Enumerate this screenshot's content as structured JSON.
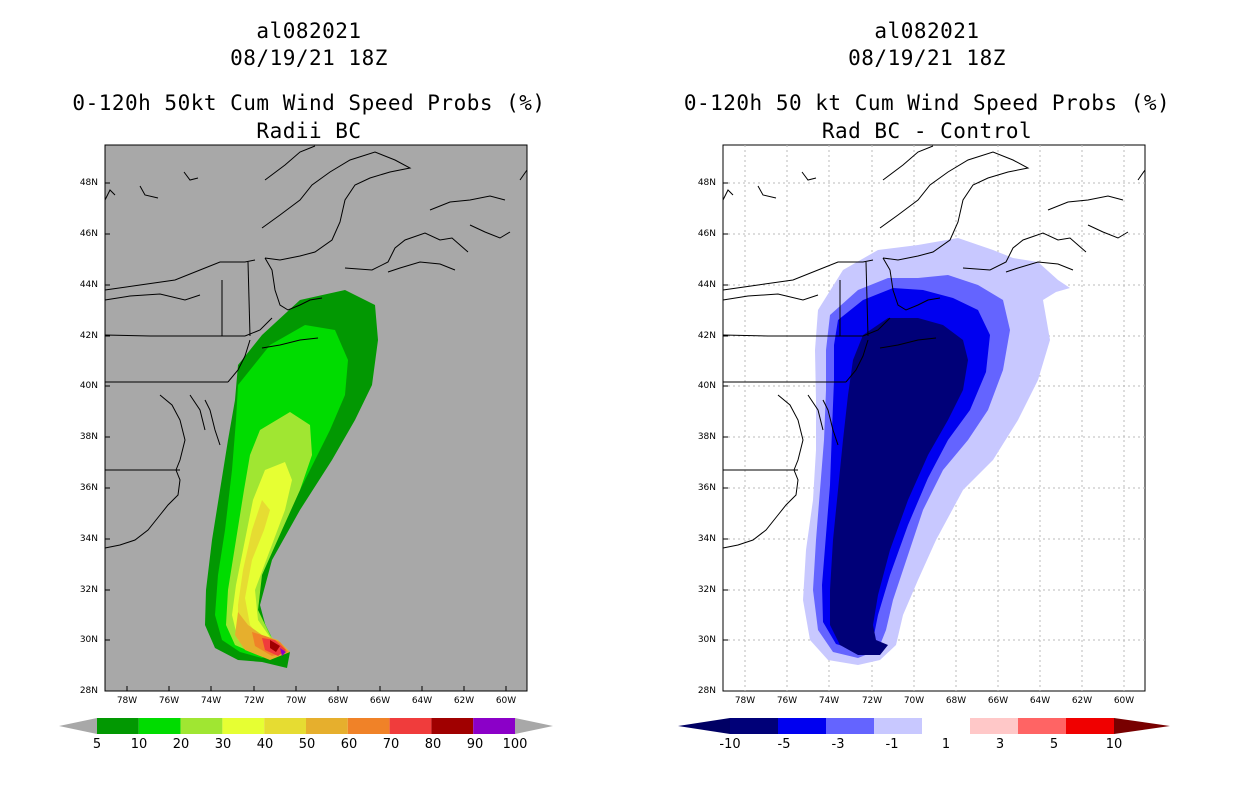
{
  "left": {
    "title_line1": "al082021",
    "title_line2": "08/19/21 18Z",
    "title_line3": "0-120h 50kt Cum Wind Speed Probs (%)",
    "title_line4": "Radii BC",
    "background_color": "#a8a8a8",
    "colorbar": {
      "labels": [
        "5",
        "10",
        "20",
        "30",
        "40",
        "50",
        "60",
        "70",
        "80",
        "90",
        "100"
      ],
      "colors": [
        "#029802",
        "#00dc00",
        "#a0e632",
        "#e6ff33",
        "#e6dc32",
        "#e6af2d",
        "#f08228",
        "#f03c3c",
        "#a00000",
        "#8b00c8"
      ]
    }
  },
  "right": {
    "title_line1": "al082021",
    "title_line2": "08/19/21 18Z",
    "title_line3": "0-120h 50 kt Cum Wind Speed Probs (%)",
    "title_line4": "Rad BC - Control",
    "background_color": "#ffffff",
    "colorbar": {
      "labels": [
        "-10",
        "-5",
        "-3",
        "-1",
        "1",
        "3",
        "5",
        "10"
      ],
      "colors": [
        "#000078",
        "#0000f0",
        "#6464ff",
        "#c8c8ff",
        "#ffffff",
        "#ffc8c8",
        "#ff6464",
        "#f00000"
      ]
    }
  },
  "axes": {
    "lat_labels": [
      "48N",
      "46N",
      "44N",
      "42N",
      "40N",
      "38N",
      "36N",
      "34N",
      "32N",
      "30N",
      "28N"
    ],
    "lon_labels": [
      "78W",
      "76W",
      "74W",
      "72W",
      "70W",
      "68W",
      "66W",
      "64W",
      "62W",
      "60W"
    ]
  },
  "colors": {
    "left_under": "#a8a8a8",
    "left_over": "#a8a8a8",
    "right_under": "#000064",
    "right_over": "#780000"
  }
}
